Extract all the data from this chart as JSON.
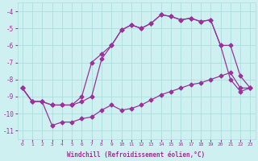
{
  "xlabel": "Windchill (Refroidissement éolien,°C)",
  "bg_color": "#cff0f0",
  "grid_color": "#aadddd",
  "line_color": "#993399",
  "marker": "D",
  "markersize": 2.5,
  "linewidth": 0.9,
  "xlim": [
    -0.5,
    23.5
  ],
  "ylim": [
    -11.5,
    -3.5
  ],
  "yticks": [
    -11,
    -10,
    -9,
    -8,
    -7,
    -6,
    -5,
    -4
  ],
  "xticks": [
    0,
    1,
    2,
    3,
    4,
    5,
    6,
    7,
    8,
    9,
    10,
    11,
    12,
    13,
    14,
    15,
    16,
    17,
    18,
    19,
    20,
    21,
    22,
    23
  ],
  "series": [
    {
      "x": [
        0,
        1,
        2,
        3,
        4,
        5,
        6,
        7,
        8,
        9,
        10,
        11,
        12,
        13,
        14,
        15,
        16,
        17,
        18,
        19,
        20,
        21,
        22,
        23
      ],
      "y": [
        -8.5,
        -9.3,
        -9.3,
        -10.7,
        -10.5,
        -10.5,
        -10.3,
        -10.2,
        -9.8,
        -9.5,
        -9.8,
        -9.7,
        -9.5,
        -9.2,
        -8.9,
        -8.7,
        -8.5,
        -8.3,
        -8.2,
        -8.0,
        -7.8,
        -7.6,
        -8.5,
        -8.5
      ]
    },
    {
      "x": [
        0,
        1,
        2,
        3,
        4,
        5,
        6,
        7,
        8,
        9,
        10,
        11,
        12,
        13,
        14,
        15,
        16,
        17,
        18,
        19,
        20,
        21,
        22,
        23
      ],
      "y": [
        -8.5,
        -9.3,
        -9.3,
        -9.5,
        -9.5,
        -9.5,
        -9.0,
        -7.0,
        -6.5,
        -6.0,
        -5.1,
        -4.8,
        -5.0,
        -4.7,
        -4.2,
        -4.3,
        -4.5,
        -4.4,
        -4.6,
        -4.5,
        -6.0,
        -6.0,
        -7.8,
        -8.5
      ]
    },
    {
      "x": [
        0,
        1,
        2,
        3,
        4,
        5,
        6,
        7,
        8,
        9,
        10,
        11,
        12,
        13,
        14,
        15,
        16,
        17,
        18,
        19,
        20,
        21,
        22,
        23
      ],
      "y": [
        -8.5,
        -9.3,
        -9.3,
        -9.5,
        -9.5,
        -9.5,
        -9.3,
        -9.0,
        -6.8,
        -6.0,
        -5.1,
        -4.8,
        -5.0,
        -4.7,
        -4.2,
        -4.3,
        -4.5,
        -4.4,
        -4.6,
        -4.5,
        -6.0,
        -8.0,
        -8.7,
        -8.5
      ]
    }
  ]
}
